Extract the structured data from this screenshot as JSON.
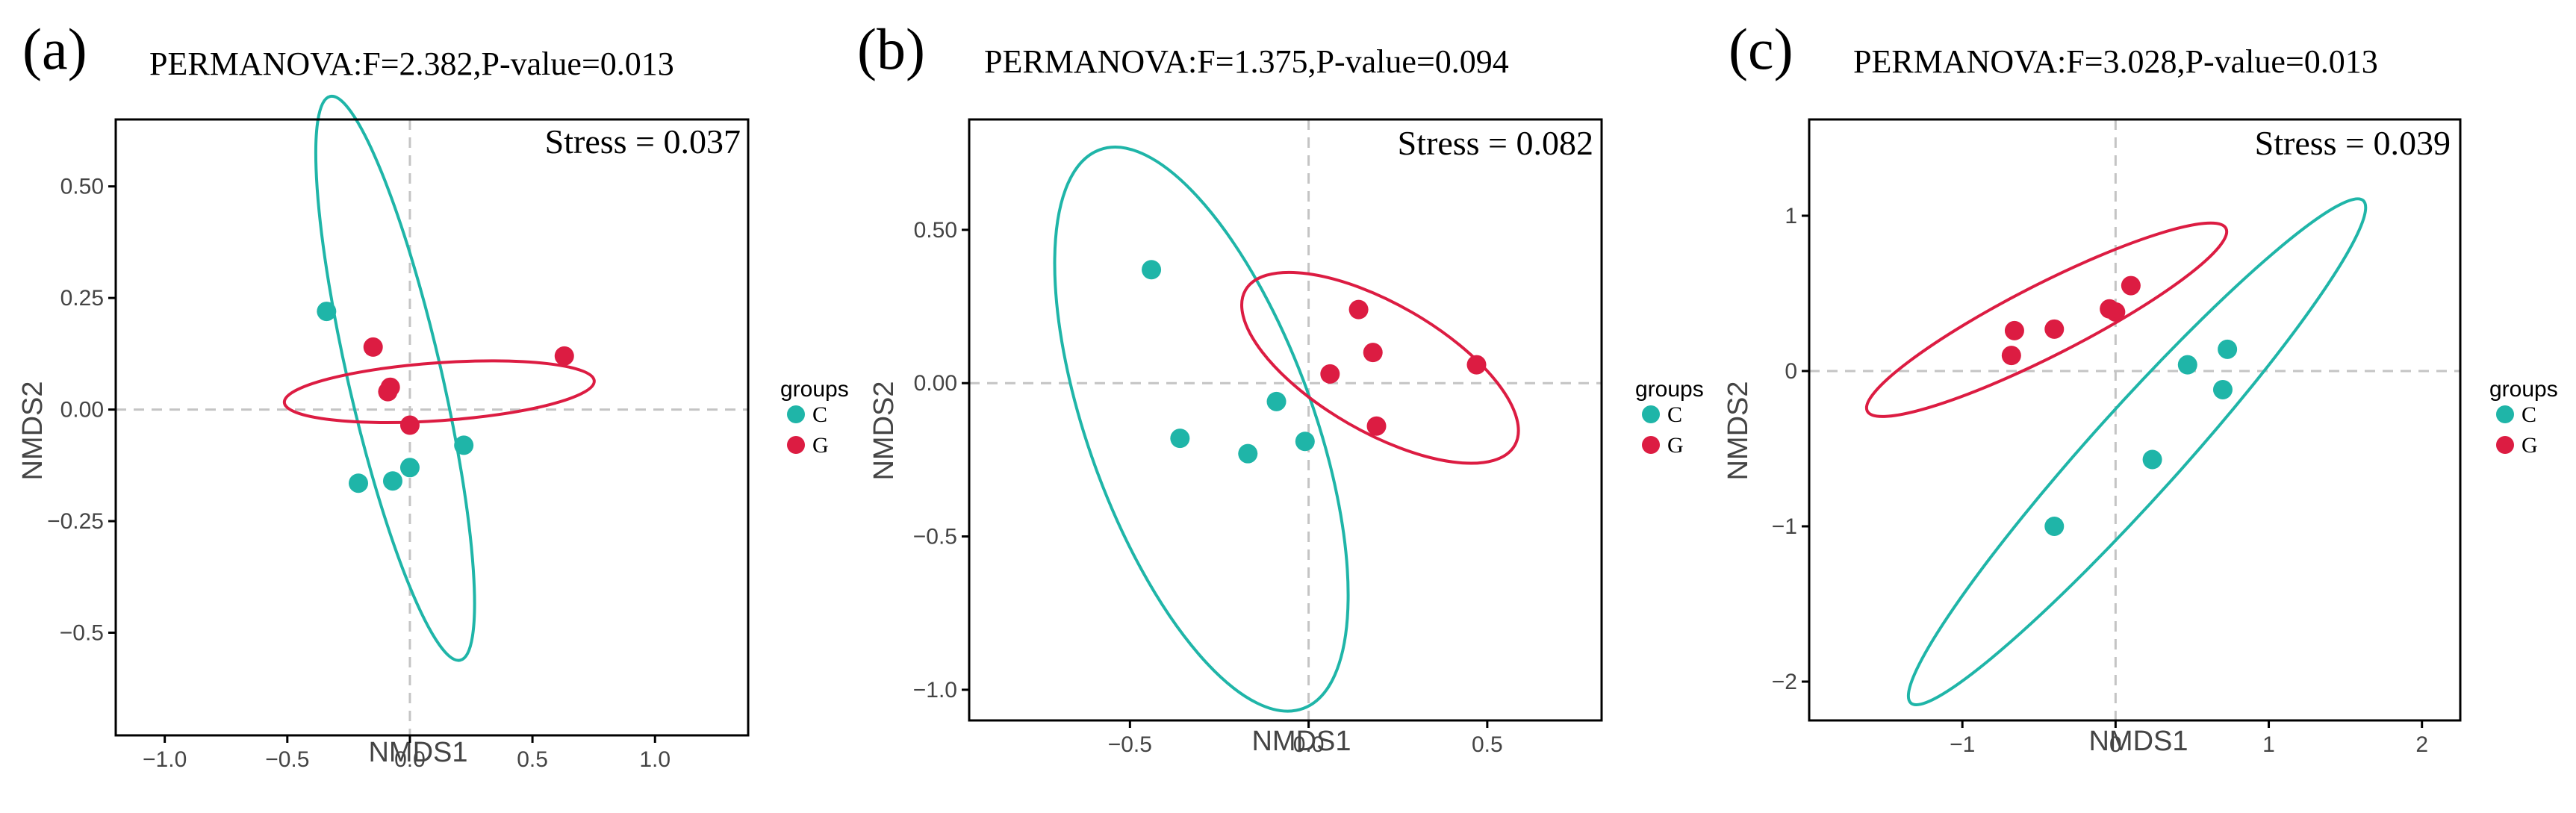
{
  "colors": {
    "C": "#1fb5a8",
    "G": "#dc1c42",
    "axis": "#000000",
    "zero_line": "#c4c4c4"
  },
  "chart_data": [
    {
      "type": "scatter",
      "panel_label": "(a)",
      "title": "PERMANOVA:F=2.382,P-value=0.013",
      "stress_label": "Stress = 0.037",
      "xlabel": "NMDS1",
      "ylabel": "NMDS2",
      "xlim": [
        -1.2,
        1.38
      ],
      "ylim": [
        -0.73,
        0.65
      ],
      "xticks": [
        {
          "v": -1.0,
          "label": "−1.0"
        },
        {
          "v": -0.5,
          "label": "−0.5"
        },
        {
          "v": 0.0,
          "label": "0.0"
        },
        {
          "v": 0.5,
          "label": "0.5"
        },
        {
          "v": 1.0,
          "label": "1.0"
        }
      ],
      "yticks": [
        {
          "v": 0.5,
          "label": "0.50"
        },
        {
          "v": 0.25,
          "label": "0.25"
        },
        {
          "v": 0.0,
          "label": "0.00"
        },
        {
          "v": -0.25,
          "label": "−0.25"
        },
        {
          "v": -0.5,
          "label": "−0.5"
        }
      ],
      "legend_title": "groups",
      "legend_entries": [
        "C",
        "G"
      ],
      "legend_position": "right",
      "series": [
        {
          "name": "C",
          "x": [
            -0.34,
            -0.21,
            -0.07,
            0.0,
            0.22
          ],
          "y": [
            0.22,
            -0.165,
            -0.16,
            -0.13,
            -0.08
          ]
        },
        {
          "name": "G",
          "x": [
            -0.15,
            -0.09,
            -0.08,
            0.0,
            0.63
          ],
          "y": [
            0.14,
            0.04,
            0.05,
            -0.035,
            0.12
          ]
        }
      ],
      "ellipses": [
        {
          "group": "C",
          "cx": -0.06,
          "cy": 0.07,
          "a": 0.66,
          "b": 0.18,
          "angle_deg": 103
        },
        {
          "group": "G",
          "cx": 0.12,
          "cy": 0.04,
          "a": 0.63,
          "b": 0.065,
          "angle_deg": 4
        }
      ]
    },
    {
      "type": "scatter",
      "panel_label": "(b)",
      "title": "PERMANOVA:F=1.375,P-value=0.094",
      "stress_label": "Stress = 0.082",
      "xlabel": "NMDS1",
      "ylabel": "NMDS2",
      "xlim": [
        -0.95,
        0.82
      ],
      "ylim": [
        -1.1,
        0.86
      ],
      "xticks": [
        {
          "v": -0.5,
          "label": "−0.5"
        },
        {
          "v": 0.0,
          "label": "0.0"
        },
        {
          "v": 0.5,
          "label": "0.5"
        }
      ],
      "yticks": [
        {
          "v": 0.5,
          "label": "0.50"
        },
        {
          "v": 0.0,
          "label": "0.00"
        },
        {
          "v": -0.5,
          "label": "−0.5"
        },
        {
          "v": -1.0,
          "label": "−1.0"
        }
      ],
      "legend_title": "groups",
      "legend_entries": [
        "C",
        "G"
      ],
      "legend_position": "right",
      "series": [
        {
          "name": "C",
          "x": [
            -0.44,
            -0.36,
            -0.17,
            -0.09,
            -0.01
          ],
          "y": [
            0.37,
            -0.18,
            -0.23,
            -0.06,
            -0.19
          ]
        },
        {
          "name": "G",
          "x": [
            0.06,
            0.14,
            0.18,
            0.19,
            0.47
          ],
          "y": [
            0.03,
            0.24,
            0.1,
            -0.14,
            0.06
          ]
        }
      ],
      "ellipses": [
        {
          "group": "C",
          "cx": -0.3,
          "cy": -0.15,
          "a": 0.95,
          "b": 0.32,
          "angle_deg": 110
        },
        {
          "group": "G",
          "cx": 0.2,
          "cy": 0.05,
          "a": 0.45,
          "b": 0.2,
          "angle_deg": -30
        }
      ]
    },
    {
      "type": "scatter",
      "panel_label": "(c)",
      "title": "PERMANOVA:F=3.028,P-value=0.013",
      "stress_label": "Stress = 0.039",
      "xlabel": "NMDS1",
      "ylabel": "NMDS2",
      "xlim": [
        -2.0,
        2.25
      ],
      "ylim": [
        -2.25,
        1.62
      ],
      "xticks": [
        {
          "v": -1,
          "label": "−1"
        },
        {
          "v": 0,
          "label": "0"
        },
        {
          "v": 1,
          "label": "1"
        },
        {
          "v": 2,
          "label": "2"
        }
      ],
      "yticks": [
        {
          "v": 1,
          "label": "1"
        },
        {
          "v": 0,
          "label": "0"
        },
        {
          "v": -1,
          "label": "−1"
        },
        {
          "v": -2,
          "label": "−2"
        }
      ],
      "legend_title": "groups",
      "legend_entries": [
        "C",
        "G"
      ],
      "legend_position": "right",
      "series": [
        {
          "name": "C",
          "x": [
            -0.4,
            0.24,
            0.47,
            0.7,
            0.73
          ],
          "y": [
            -1.0,
            -0.57,
            0.04,
            -0.12,
            0.14
          ]
        },
        {
          "name": "G",
          "x": [
            -0.68,
            -0.66,
            -0.4,
            -0.04,
            0.0,
            0.1
          ],
          "y": [
            0.1,
            0.26,
            0.27,
            0.4,
            0.38,
            0.55
          ]
        }
      ],
      "ellipses": [
        {
          "group": "C",
          "cx": 0.14,
          "cy": -0.52,
          "a": 2.19,
          "b": 0.29,
          "angle_deg": 48
        },
        {
          "group": "G",
          "cx": -0.45,
          "cy": 0.33,
          "a": 1.31,
          "b": 0.23,
          "angle_deg": 27
        }
      ]
    }
  ]
}
